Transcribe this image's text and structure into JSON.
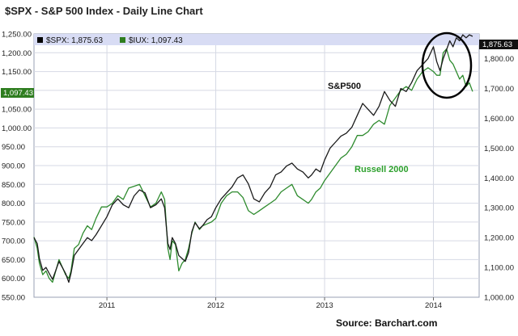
{
  "chart_data": {
    "type": "line",
    "title": "$SPX - S&P 500 Index - Daily Line Chart",
    "legend": [
      {
        "label": "$SPX: 1,875.63",
        "color": "#000000"
      },
      {
        "label": "$IUX: 1,097.43",
        "color": "#2e7d1f"
      }
    ],
    "left_axis": {
      "ticks": [
        "1,250.00",
        "1,200.00",
        "1,150.00",
        "1,100.00",
        "1,050.00",
        "1,000.00",
        "950.00",
        "900.00",
        "850.00",
        "800.00",
        "750.00",
        "700.00",
        "650.00",
        "600.00",
        "550.00"
      ],
      "ylim": [
        550,
        1250
      ]
    },
    "right_axis": {
      "ticks": [
        "1,800.00",
        "1,700.00",
        "1,600.00",
        "1,500.00",
        "1,400.00",
        "1,300.00",
        "1,200.00",
        "1,100.00",
        "1,000.00"
      ],
      "ylim": [
        1000,
        1883
      ]
    },
    "x_ticks": [
      "2011",
      "2012",
      "2013",
      "2014"
    ],
    "xlim": [
      2010.33,
      2014.42
    ],
    "last_value_left": "1,097.43",
    "last_value_right": "1,875.63",
    "annotations": {
      "sp500": "S&P500",
      "russell": "Russell 2000",
      "source": "Source:  Barchart.com"
    },
    "colors": {
      "sp500": "#1a1a1a",
      "russell": "#2e8b2e",
      "russell_label": "#2ca02c",
      "legend_band": "#d8dcf4"
    },
    "series": [
      {
        "name": "S&P 500",
        "axis": "right",
        "x": [
          2010.33,
          2010.36,
          2010.38,
          2010.41,
          2010.44,
          2010.47,
          2010.5,
          2010.53,
          2010.56,
          2010.59,
          2010.62,
          2010.65,
          2010.67,
          2010.7,
          2010.74,
          2010.78,
          2010.82,
          2010.86,
          2010.9,
          2010.95,
          2011.0,
          2011.05,
          2011.1,
          2011.15,
          2011.2,
          2011.25,
          2011.3,
          2011.35,
          2011.4,
          2011.45,
          2011.5,
          2011.53,
          2011.56,
          2011.58,
          2011.6,
          2011.63,
          2011.66,
          2011.69,
          2011.72,
          2011.75,
          2011.78,
          2011.81,
          2011.85,
          2011.88,
          2011.92,
          2011.96,
          2012.0,
          2012.05,
          2012.1,
          2012.15,
          2012.2,
          2012.25,
          2012.3,
          2012.35,
          2012.4,
          2012.45,
          2012.5,
          2012.55,
          2012.6,
          2012.65,
          2012.7,
          2012.75,
          2012.8,
          2012.85,
          2012.88,
          2012.92,
          2012.96,
          2013.0,
          2013.05,
          2013.1,
          2013.15,
          2013.2,
          2013.25,
          2013.3,
          2013.35,
          2013.4,
          2013.45,
          2013.5,
          2013.55,
          2013.6,
          2013.65,
          2013.7,
          2013.75,
          2013.8,
          2013.85,
          2013.9,
          2013.95,
          2014.0,
          2014.03,
          2014.06,
          2014.09,
          2014.12,
          2014.15,
          2014.18,
          2014.21,
          2014.24,
          2014.27,
          2014.3,
          2014.33,
          2014.36
        ],
        "values": [
          1200,
          1180,
          1130,
          1090,
          1100,
          1080,
          1060,
          1090,
          1120,
          1100,
          1080,
          1050,
          1080,
          1140,
          1160,
          1180,
          1200,
          1190,
          1210,
          1240,
          1270,
          1310,
          1330,
          1310,
          1300,
          1340,
          1360,
          1350,
          1300,
          1310,
          1330,
          1300,
          1180,
          1160,
          1200,
          1180,
          1140,
          1130,
          1120,
          1150,
          1220,
          1250,
          1230,
          1240,
          1260,
          1270,
          1300,
          1330,
          1350,
          1370,
          1400,
          1410,
          1380,
          1330,
          1320,
          1350,
          1370,
          1410,
          1420,
          1440,
          1450,
          1430,
          1420,
          1400,
          1410,
          1430,
          1420,
          1460,
          1500,
          1520,
          1540,
          1550,
          1570,
          1610,
          1650,
          1630,
          1610,
          1640,
          1690,
          1660,
          1640,
          1700,
          1690,
          1720,
          1760,
          1780,
          1800,
          1840,
          1790,
          1760,
          1800,
          1830,
          1860,
          1840,
          1870,
          1860,
          1880,
          1870,
          1880,
          1875
        ]
      },
      {
        "name": "Russell 2000",
        "axis": "left",
        "x": [
          2010.33,
          2010.36,
          2010.38,
          2010.41,
          2010.44,
          2010.47,
          2010.5,
          2010.53,
          2010.56,
          2010.59,
          2010.62,
          2010.65,
          2010.67,
          2010.7,
          2010.74,
          2010.78,
          2010.82,
          2010.86,
          2010.9,
          2010.95,
          2011.0,
          2011.05,
          2011.1,
          2011.15,
          2011.2,
          2011.25,
          2011.3,
          2011.35,
          2011.4,
          2011.45,
          2011.5,
          2011.53,
          2011.56,
          2011.58,
          2011.6,
          2011.63,
          2011.66,
          2011.69,
          2011.72,
          2011.75,
          2011.78,
          2011.81,
          2011.85,
          2011.88,
          2011.92,
          2011.96,
          2012.0,
          2012.05,
          2012.1,
          2012.15,
          2012.2,
          2012.25,
          2012.3,
          2012.35,
          2012.4,
          2012.45,
          2012.5,
          2012.55,
          2012.6,
          2012.65,
          2012.7,
          2012.75,
          2012.8,
          2012.85,
          2012.88,
          2012.92,
          2012.96,
          2013.0,
          2013.05,
          2013.1,
          2013.15,
          2013.2,
          2013.25,
          2013.3,
          2013.35,
          2013.4,
          2013.45,
          2013.5,
          2013.55,
          2013.6,
          2013.65,
          2013.7,
          2013.75,
          2013.8,
          2013.85,
          2013.9,
          2013.95,
          2014.0,
          2014.03,
          2014.06,
          2014.09,
          2014.12,
          2014.15,
          2014.18,
          2014.21,
          2014.24,
          2014.27,
          2014.3,
          2014.33,
          2014.36
        ],
        "values": [
          710,
          680,
          640,
          610,
          620,
          600,
          590,
          620,
          650,
          630,
          610,
          600,
          620,
          680,
          690,
          720,
          740,
          730,
          760,
          790,
          790,
          800,
          820,
          810,
          840,
          845,
          850,
          820,
          790,
          800,
          830,
          810,
          680,
          650,
          700,
          690,
          620,
          640,
          650,
          680,
          720,
          750,
          730,
          740,
          745,
          750,
          760,
          800,
          820,
          830,
          830,
          815,
          780,
          770,
          780,
          790,
          800,
          810,
          830,
          840,
          850,
          820,
          810,
          800,
          810,
          830,
          840,
          860,
          880,
          900,
          920,
          930,
          950,
          980,
          980,
          990,
          1010,
          1020,
          1010,
          1060,
          1080,
          1100,
          1110,
          1100,
          1130,
          1150,
          1160,
          1150,
          1140,
          1140,
          1200,
          1210,
          1180,
          1170,
          1150,
          1130,
          1140,
          1110,
          1120,
          1097
        ]
      }
    ]
  }
}
